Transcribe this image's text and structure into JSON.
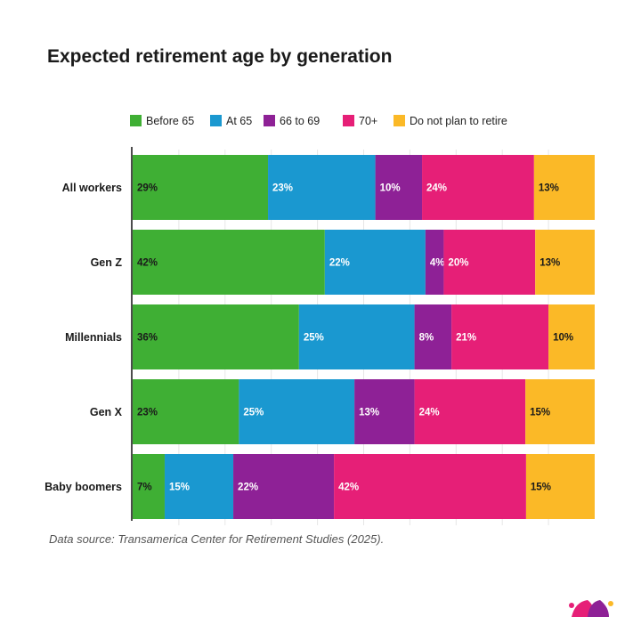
{
  "chart_data": {
    "type": "bar",
    "orientation": "horizontal",
    "stacked": true,
    "title": "Expected retirement age by generation",
    "source": "Data source: Transamerica Center for Retirement Studies (2025).",
    "categories": [
      "All workers",
      "Gen Z",
      "Millennials",
      "Gen X",
      "Baby boomers"
    ],
    "series": [
      {
        "name": "Before 65",
        "color": "#3faf34",
        "label_color": "#1a1a1a",
        "values": [
          29,
          42,
          36,
          23,
          7
        ]
      },
      {
        "name": "At 65",
        "color": "#1a98d0",
        "label_color": "#ffffff",
        "values": [
          23,
          22,
          25,
          25,
          15
        ]
      },
      {
        "name": "66 to 69",
        "color": "#8e2196",
        "label_color": "#ffffff",
        "values": [
          10,
          4,
          8,
          13,
          22
        ]
      },
      {
        "name": "70+",
        "color": "#e61f77",
        "label_color": "#ffffff",
        "values": [
          24,
          20,
          21,
          24,
          42
        ]
      },
      {
        "name": "Do not plan to retire",
        "color": "#fbb927",
        "label_color": "#1a1a1a",
        "values": [
          13,
          13,
          10,
          15,
          15
        ]
      }
    ],
    "value_suffix": "%",
    "legend_position": "top",
    "grid": true
  },
  "logo": {
    "name": "jester-hat-logo",
    "colors": [
      "#e61f77",
      "#8e2196",
      "#fbb927"
    ]
  }
}
